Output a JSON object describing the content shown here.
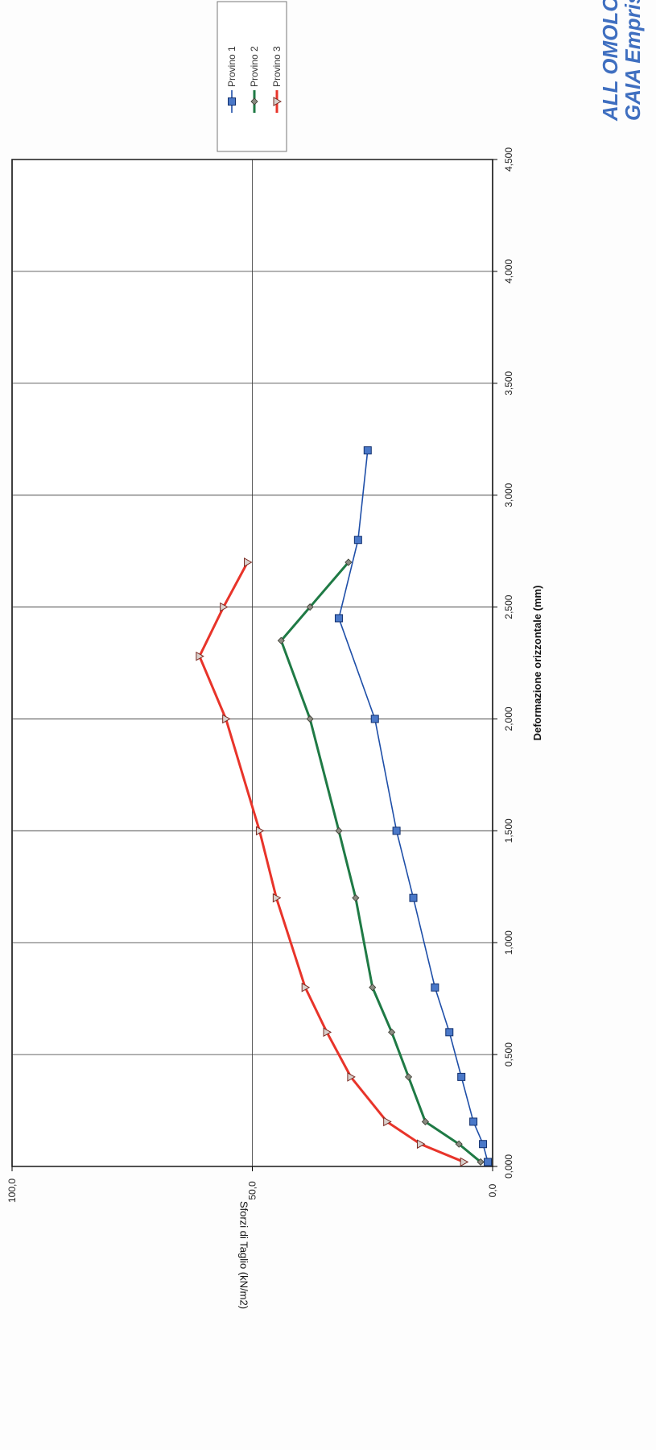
{
  "header": {
    "line1": "ALL OMOLO",
    "line2": "GAIA Emprise"
  },
  "chart_data": {
    "type": "line",
    "title": "",
    "xlabel": "Deformazione orizzontale (mm)",
    "ylabel": "Sforzi di Taglio (kN/m2)",
    "xlim": [
      0,
      4.5
    ],
    "ylim": [
      0,
      100
    ],
    "x_ticks": [
      "0,000",
      "0,500",
      "1,000",
      "1,500",
      "2,000",
      "2,500",
      "3,000",
      "3,500",
      "4,000",
      "4,500"
    ],
    "y_ticks": [
      "0,0",
      "50,0",
      "100,0"
    ],
    "grid": true,
    "legend_position": "top-right",
    "series": [
      {
        "name": "Provino 1",
        "color": "#1f4fa8",
        "marker": "square",
        "x": [
          0.02,
          0.1,
          0.2,
          0.4,
          0.6,
          0.8,
          1.2,
          1.5,
          2.0,
          2.45,
          2.8,
          3.2
        ],
        "y": [
          1,
          2,
          4,
          6.5,
          9,
          12,
          16.5,
          20,
          24.5,
          32,
          28,
          26
        ]
      },
      {
        "name": "Provino 2",
        "color": "#1f7a45",
        "marker": "diamond",
        "x": [
          0.02,
          0.1,
          0.2,
          0.4,
          0.6,
          0.8,
          1.2,
          1.5,
          2.0,
          2.35,
          2.5,
          2.7
        ],
        "y": [
          2.5,
          7,
          14,
          17.5,
          21,
          25,
          28.5,
          32,
          38,
          44,
          38,
          30
        ]
      },
      {
        "name": "Provino 3",
        "color": "#e8342a",
        "marker": "triangle",
        "x": [
          0.02,
          0.1,
          0.2,
          0.4,
          0.6,
          0.8,
          1.2,
          1.5,
          2.0,
          2.28,
          2.5,
          2.7
        ],
        "y": [
          6,
          15,
          22,
          29.5,
          34.5,
          39,
          45,
          48.5,
          55.5,
          61,
          56,
          51
        ]
      }
    ]
  }
}
